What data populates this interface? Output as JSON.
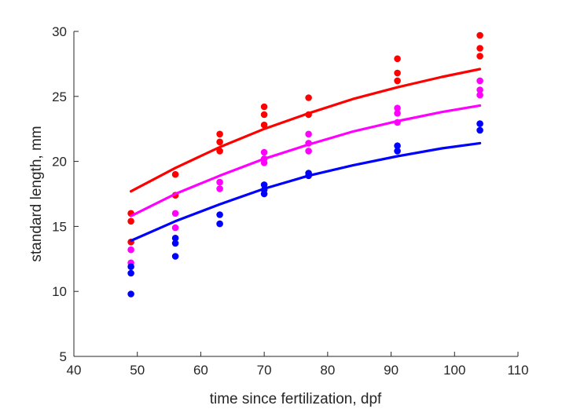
{
  "chart_data": {
    "type": "scatter",
    "title": "",
    "xlabel": "time since fertilization, dpf",
    "ylabel": "standard length, mm",
    "xlim": [
      40,
      110
    ],
    "ylim": [
      5,
      30
    ],
    "xticks": [
      "40",
      "50",
      "60",
      "70",
      "80",
      "90",
      "100",
      "110"
    ],
    "yticks": [
      "5",
      "10",
      "15",
      "20",
      "25",
      "30"
    ],
    "grid": false,
    "legend": "none",
    "series": [
      {
        "color": "#ff0000",
        "points": [
          [
            49,
            16.0
          ],
          [
            49,
            15.4
          ],
          [
            49,
            13.8
          ],
          [
            56,
            19.0
          ],
          [
            56,
            17.4
          ],
          [
            63,
            22.1
          ],
          [
            63,
            21.5
          ],
          [
            63,
            20.8
          ],
          [
            70,
            24.2
          ],
          [
            70,
            23.6
          ],
          [
            70,
            22.8
          ],
          [
            77,
            24.9
          ],
          [
            77,
            23.6
          ],
          [
            91,
            27.9
          ],
          [
            91,
            26.8
          ],
          [
            91,
            26.2
          ],
          [
            104,
            29.7
          ],
          [
            104,
            28.7
          ],
          [
            104,
            28.1
          ]
        ],
        "fit": [
          [
            49,
            17.7
          ],
          [
            56,
            19.5
          ],
          [
            63,
            21.1
          ],
          [
            70,
            22.5
          ],
          [
            77,
            23.7
          ],
          [
            84,
            24.8
          ],
          [
            91,
            25.7
          ],
          [
            98,
            26.5
          ],
          [
            104,
            27.1
          ]
        ]
      },
      {
        "color": "#ff00ff",
        "points": [
          [
            49,
            13.2
          ],
          [
            49,
            12.2
          ],
          [
            56,
            16.0
          ],
          [
            56,
            14.9
          ],
          [
            63,
            18.4
          ],
          [
            63,
            17.9
          ],
          [
            70,
            20.7
          ],
          [
            70,
            20.2
          ],
          [
            70,
            19.9
          ],
          [
            77,
            22.1
          ],
          [
            77,
            21.4
          ],
          [
            77,
            20.8
          ],
          [
            91,
            24.1
          ],
          [
            91,
            23.7
          ],
          [
            91,
            23.0
          ],
          [
            104,
            26.2
          ],
          [
            104,
            25.5
          ],
          [
            104,
            25.1
          ]
        ],
        "fit": [
          [
            49,
            15.8
          ],
          [
            56,
            17.5
          ],
          [
            63,
            18.9
          ],
          [
            70,
            20.2
          ],
          [
            77,
            21.3
          ],
          [
            84,
            22.3
          ],
          [
            91,
            23.1
          ],
          [
            98,
            23.8
          ],
          [
            104,
            24.3
          ]
        ]
      },
      {
        "color": "#0000ff",
        "points": [
          [
            49,
            11.9
          ],
          [
            49,
            11.4
          ],
          [
            49,
            9.8
          ],
          [
            56,
            14.1
          ],
          [
            56,
            13.7
          ],
          [
            56,
            12.7
          ],
          [
            63,
            15.9
          ],
          [
            63,
            15.2
          ],
          [
            70,
            18.2
          ],
          [
            70,
            17.8
          ],
          [
            70,
            17.5
          ],
          [
            77,
            19.1
          ],
          [
            77,
            18.9
          ],
          [
            91,
            21.2
          ],
          [
            91,
            20.8
          ],
          [
            104,
            22.9
          ],
          [
            104,
            22.4
          ]
        ],
        "fit": [
          [
            49,
            13.9
          ],
          [
            56,
            15.4
          ],
          [
            63,
            16.7
          ],
          [
            70,
            17.9
          ],
          [
            77,
            18.9
          ],
          [
            84,
            19.7
          ],
          [
            91,
            20.4
          ],
          [
            98,
            21.0
          ],
          [
            104,
            21.4
          ]
        ]
      }
    ]
  }
}
